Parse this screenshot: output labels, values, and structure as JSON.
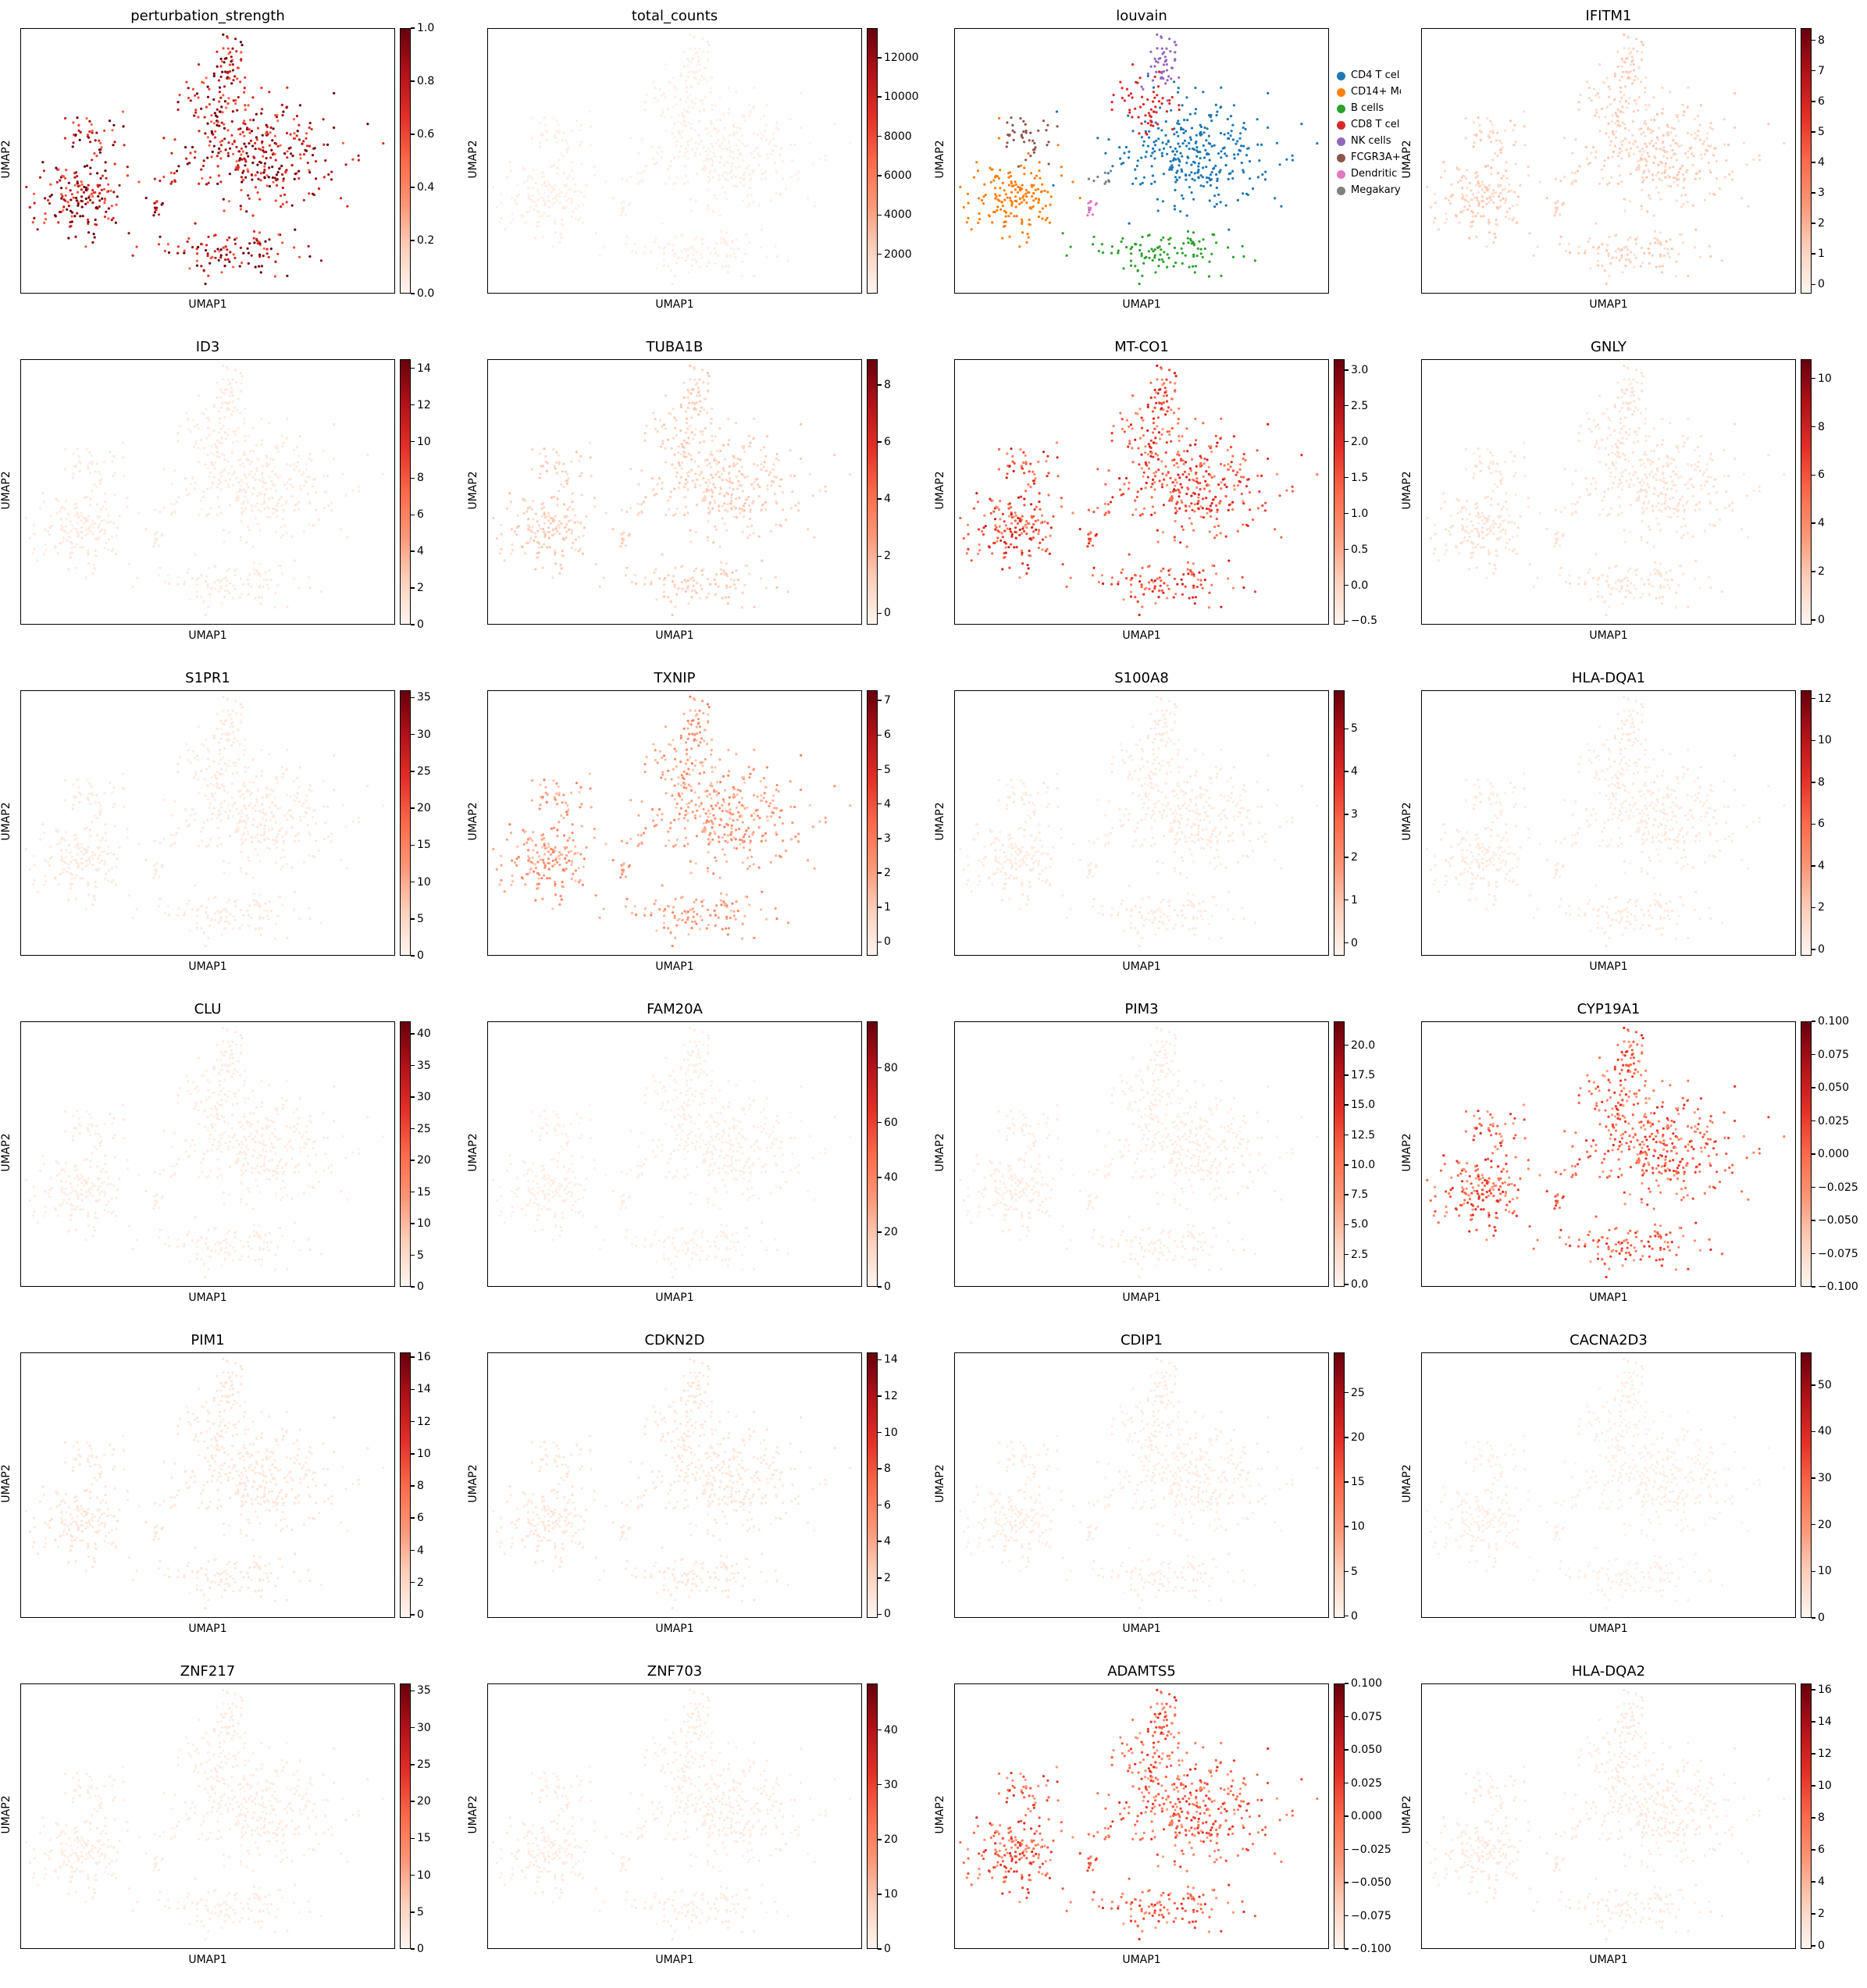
{
  "chart_data": {
    "type": "scatter",
    "xlabel": "UMAP1",
    "ylabel": "UMAP2",
    "colormap": [
      "#fff5f0",
      "#fdd0bc",
      "#fc9777",
      "#fb694a",
      "#e32f27",
      "#b11218",
      "#67000d"
    ],
    "panels": [
      {
        "title": "perturbation_strength",
        "kind": "continuous",
        "level": 0.8,
        "clim": [
          0.0,
          1.0
        ],
        "ticks": [
          {
            "v": 0.0,
            "t": "0.0"
          },
          {
            "v": 0.2,
            "t": "0.2"
          },
          {
            "v": 0.4,
            "t": "0.4"
          },
          {
            "v": 0.6,
            "t": "0.6"
          },
          {
            "v": 0.8,
            "t": "0.8"
          },
          {
            "v": 1.0,
            "t": "1.0"
          }
        ]
      },
      {
        "title": "total_counts",
        "kind": "continuous",
        "level": 0.03,
        "clim": [
          0,
          13500
        ],
        "ticks": [
          {
            "v": 2000,
            "t": "2000"
          },
          {
            "v": 4000,
            "t": "4000"
          },
          {
            "v": 6000,
            "t": "6000"
          },
          {
            "v": 8000,
            "t": "8000"
          },
          {
            "v": 10000,
            "t": "10000"
          },
          {
            "v": 12000,
            "t": "12000"
          }
        ]
      },
      {
        "title": "louvain",
        "kind": "categorical",
        "categories": [
          {
            "name": "CD4 T cel",
            "color": "#1f77b4"
          },
          {
            "name": "CD14+ Mo",
            "color": "#ff7f0e"
          },
          {
            "name": "B cells",
            "color": "#2ca02c"
          },
          {
            "name": "CD8 T cel",
            "color": "#d62728"
          },
          {
            "name": "NK cells",
            "color": "#9467bd"
          },
          {
            "name": "FCGR3A+",
            "color": "#8c564b"
          },
          {
            "name": "Dendritic",
            "color": "#e377c2"
          },
          {
            "name": "Megakary",
            "color": "#7f7f7f"
          }
        ]
      },
      {
        "title": "IFITM1",
        "kind": "continuous",
        "level": 0.15,
        "clim": [
          -0.3,
          8.4
        ],
        "ticks": [
          {
            "v": 0,
            "t": "0"
          },
          {
            "v": 1,
            "t": "1"
          },
          {
            "v": 2,
            "t": "2"
          },
          {
            "v": 3,
            "t": "3"
          },
          {
            "v": 4,
            "t": "4"
          },
          {
            "v": 5,
            "t": "5"
          },
          {
            "v": 6,
            "t": "6"
          },
          {
            "v": 7,
            "t": "7"
          },
          {
            "v": 8,
            "t": "8"
          }
        ]
      },
      {
        "title": "ID3",
        "kind": "continuous",
        "level": 0.05,
        "clim": [
          0,
          14.5
        ],
        "ticks": [
          {
            "v": 0,
            "t": "0"
          },
          {
            "v": 2,
            "t": "2"
          },
          {
            "v": 4,
            "t": "4"
          },
          {
            "v": 6,
            "t": "6"
          },
          {
            "v": 8,
            "t": "8"
          },
          {
            "v": 10,
            "t": "10"
          },
          {
            "v": 12,
            "t": "12"
          },
          {
            "v": 14,
            "t": "14"
          }
        ]
      },
      {
        "title": "TUBA1B",
        "kind": "continuous",
        "level": 0.15,
        "clim": [
          -0.4,
          8.9
        ],
        "ticks": [
          {
            "v": 0,
            "t": "0"
          },
          {
            "v": 2,
            "t": "2"
          },
          {
            "v": 4,
            "t": "4"
          },
          {
            "v": 6,
            "t": "6"
          },
          {
            "v": 8,
            "t": "8"
          }
        ]
      },
      {
        "title": "MT-CO1",
        "kind": "continuous",
        "level": 0.55,
        "clim": [
          -0.55,
          3.15
        ],
        "ticks": [
          {
            "v": -0.5,
            "t": "−0.5"
          },
          {
            "v": 0.0,
            "t": "0.0"
          },
          {
            "v": 0.5,
            "t": "0.5"
          },
          {
            "v": 1.0,
            "t": "1.0"
          },
          {
            "v": 1.5,
            "t": "1.5"
          },
          {
            "v": 2.0,
            "t": "2.0"
          },
          {
            "v": 2.5,
            "t": "2.5"
          },
          {
            "v": 3.0,
            "t": "3.0"
          }
        ]
      },
      {
        "title": "GNLY",
        "kind": "continuous",
        "level": 0.08,
        "clim": [
          -0.2,
          10.8
        ],
        "ticks": [
          {
            "v": 0,
            "t": "0"
          },
          {
            "v": 2,
            "t": "2"
          },
          {
            "v": 4,
            "t": "4"
          },
          {
            "v": 6,
            "t": "6"
          },
          {
            "v": 8,
            "t": "8"
          },
          {
            "v": 10,
            "t": "10"
          }
        ]
      },
      {
        "title": "S1PR1",
        "kind": "continuous",
        "level": 0.05,
        "clim": [
          0,
          36
        ],
        "ticks": [
          {
            "v": 0,
            "t": "0"
          },
          {
            "v": 5,
            "t": "5"
          },
          {
            "v": 10,
            "t": "10"
          },
          {
            "v": 15,
            "t": "15"
          },
          {
            "v": 20,
            "t": "20"
          },
          {
            "v": 25,
            "t": "25"
          },
          {
            "v": 30,
            "t": "30"
          },
          {
            "v": 35,
            "t": "35"
          }
        ]
      },
      {
        "title": "TXNIP",
        "kind": "continuous",
        "level": 0.3,
        "clim": [
          -0.4,
          7.3
        ],
        "ticks": [
          {
            "v": 0,
            "t": "0"
          },
          {
            "v": 1,
            "t": "1"
          },
          {
            "v": 2,
            "t": "2"
          },
          {
            "v": 3,
            "t": "3"
          },
          {
            "v": 4,
            "t": "4"
          },
          {
            "v": 5,
            "t": "5"
          },
          {
            "v": 6,
            "t": "6"
          },
          {
            "v": 7,
            "t": "7"
          }
        ]
      },
      {
        "title": "S100A8",
        "kind": "continuous",
        "level": 0.05,
        "clim": [
          -0.3,
          5.9
        ],
        "ticks": [
          {
            "v": 0,
            "t": "0"
          },
          {
            "v": 1,
            "t": "1"
          },
          {
            "v": 2,
            "t": "2"
          },
          {
            "v": 3,
            "t": "3"
          },
          {
            "v": 4,
            "t": "4"
          },
          {
            "v": 5,
            "t": "5"
          }
        ]
      },
      {
        "title": "HLA-DQA1",
        "kind": "continuous",
        "level": 0.05,
        "clim": [
          -0.3,
          12.4
        ],
        "ticks": [
          {
            "v": 0,
            "t": "0"
          },
          {
            "v": 2,
            "t": "2"
          },
          {
            "v": 4,
            "t": "4"
          },
          {
            "v": 6,
            "t": "6"
          },
          {
            "v": 8,
            "t": "8"
          },
          {
            "v": 10,
            "t": "10"
          },
          {
            "v": 12,
            "t": "12"
          }
        ]
      },
      {
        "title": "CLU",
        "kind": "continuous",
        "level": 0.04,
        "clim": [
          0,
          42
        ],
        "ticks": [
          {
            "v": 0,
            "t": "0"
          },
          {
            "v": 5,
            "t": "5"
          },
          {
            "v": 10,
            "t": "10"
          },
          {
            "v": 15,
            "t": "15"
          },
          {
            "v": 20,
            "t": "20"
          },
          {
            "v": 25,
            "t": "25"
          },
          {
            "v": 30,
            "t": "30"
          },
          {
            "v": 35,
            "t": "35"
          },
          {
            "v": 40,
            "t": "40"
          }
        ]
      },
      {
        "title": "FAM20A",
        "kind": "continuous",
        "level": 0.03,
        "clim": [
          0,
          97
        ],
        "ticks": [
          {
            "v": 0,
            "t": "0"
          },
          {
            "v": 20,
            "t": "20"
          },
          {
            "v": 40,
            "t": "40"
          },
          {
            "v": 60,
            "t": "60"
          },
          {
            "v": 80,
            "t": "80"
          }
        ]
      },
      {
        "title": "PIM3",
        "kind": "continuous",
        "level": 0.04,
        "clim": [
          -0.2,
          22
        ],
        "ticks": [
          {
            "v": 0.0,
            "t": "0.0"
          },
          {
            "v": 2.5,
            "t": "2.5"
          },
          {
            "v": 5.0,
            "t": "5.0"
          },
          {
            "v": 7.5,
            "t": "7.5"
          },
          {
            "v": 10.0,
            "t": "10.0"
          },
          {
            "v": 12.5,
            "t": "12.5"
          },
          {
            "v": 15.0,
            "t": "15.0"
          },
          {
            "v": 17.5,
            "t": "17.5"
          },
          {
            "v": 20.0,
            "t": "20.0"
          }
        ]
      },
      {
        "title": "CYP19A1",
        "kind": "continuous",
        "level": 0.5,
        "clim": [
          -0.1,
          0.1
        ],
        "ticks": [
          {
            "v": -0.1,
            "t": "−0.100"
          },
          {
            "v": -0.075,
            "t": "−0.075"
          },
          {
            "v": -0.05,
            "t": "−0.050"
          },
          {
            "v": -0.025,
            "t": "−0.025"
          },
          {
            "v": 0.0,
            "t": "0.000"
          },
          {
            "v": 0.025,
            "t": "0.025"
          },
          {
            "v": 0.05,
            "t": "0.050"
          },
          {
            "v": 0.075,
            "t": "0.075"
          },
          {
            "v": 0.1,
            "t": "0.100"
          }
        ]
      },
      {
        "title": "PIM1",
        "kind": "continuous",
        "level": 0.06,
        "clim": [
          -0.2,
          16.3
        ],
        "ticks": [
          {
            "v": 0,
            "t": "0"
          },
          {
            "v": 2,
            "t": "2"
          },
          {
            "v": 4,
            "t": "4"
          },
          {
            "v": 6,
            "t": "6"
          },
          {
            "v": 8,
            "t": "8"
          },
          {
            "v": 10,
            "t": "10"
          },
          {
            "v": 12,
            "t": "12"
          },
          {
            "v": 14,
            "t": "14"
          },
          {
            "v": 16,
            "t": "16"
          }
        ]
      },
      {
        "title": "CDKN2D",
        "kind": "continuous",
        "level": 0.06,
        "clim": [
          -0.2,
          14.4
        ],
        "ticks": [
          {
            "v": 0,
            "t": "0"
          },
          {
            "v": 2,
            "t": "2"
          },
          {
            "v": 4,
            "t": "4"
          },
          {
            "v": 6,
            "t": "6"
          },
          {
            "v": 8,
            "t": "8"
          },
          {
            "v": 10,
            "t": "10"
          },
          {
            "v": 12,
            "t": "12"
          },
          {
            "v": 14,
            "t": "14"
          }
        ]
      },
      {
        "title": "CDIP1",
        "kind": "continuous",
        "level": 0.04,
        "clim": [
          -0.2,
          29.5
        ],
        "ticks": [
          {
            "v": 0,
            "t": "0"
          },
          {
            "v": 5,
            "t": "5"
          },
          {
            "v": 10,
            "t": "10"
          },
          {
            "v": 15,
            "t": "15"
          },
          {
            "v": 20,
            "t": "20"
          },
          {
            "v": 25,
            "t": "25"
          }
        ]
      },
      {
        "title": "CACNA2D3",
        "kind": "continuous",
        "level": 0.03,
        "clim": [
          0,
          57
        ],
        "ticks": [
          {
            "v": 0,
            "t": "0"
          },
          {
            "v": 10,
            "t": "10"
          },
          {
            "v": 20,
            "t": "20"
          },
          {
            "v": 30,
            "t": "30"
          },
          {
            "v": 40,
            "t": "40"
          },
          {
            "v": 50,
            "t": "50"
          }
        ]
      },
      {
        "title": "ZNF217",
        "kind": "continuous",
        "level": 0.04,
        "clim": [
          0,
          36
        ],
        "ticks": [
          {
            "v": 0,
            "t": "0"
          },
          {
            "v": 5,
            "t": "5"
          },
          {
            "v": 10,
            "t": "10"
          },
          {
            "v": 15,
            "t": "15"
          },
          {
            "v": 20,
            "t": "20"
          },
          {
            "v": 25,
            "t": "25"
          },
          {
            "v": 30,
            "t": "30"
          },
          {
            "v": 35,
            "t": "35"
          }
        ]
      },
      {
        "title": "ZNF703",
        "kind": "continuous",
        "level": 0.04,
        "clim": [
          0,
          48.5
        ],
        "ticks": [
          {
            "v": 0,
            "t": "0"
          },
          {
            "v": 10,
            "t": "10"
          },
          {
            "v": 20,
            "t": "20"
          },
          {
            "v": 30,
            "t": "30"
          },
          {
            "v": 40,
            "t": "40"
          }
        ]
      },
      {
        "title": "ADAMTS5",
        "kind": "continuous",
        "level": 0.5,
        "clim": [
          -0.1,
          0.1
        ],
        "ticks": [
          {
            "v": -0.1,
            "t": "−0.100"
          },
          {
            "v": -0.075,
            "t": "−0.075"
          },
          {
            "v": -0.05,
            "t": "−0.050"
          },
          {
            "v": -0.025,
            "t": "−0.025"
          },
          {
            "v": 0.0,
            "t": "0.000"
          },
          {
            "v": 0.025,
            "t": "0.025"
          },
          {
            "v": 0.05,
            "t": "0.050"
          },
          {
            "v": 0.075,
            "t": "0.075"
          },
          {
            "v": 0.1,
            "t": "0.100"
          }
        ]
      },
      {
        "title": "HLA-DQA2",
        "kind": "continuous",
        "level": 0.05,
        "clim": [
          -0.2,
          16.4
        ],
        "ticks": [
          {
            "v": 0,
            "t": "0"
          },
          {
            "v": 2,
            "t": "2"
          },
          {
            "v": 4,
            "t": "4"
          },
          {
            "v": 6,
            "t": "6"
          },
          {
            "v": 8,
            "t": "8"
          },
          {
            "v": 10,
            "t": "10"
          },
          {
            "v": 12,
            "t": "12"
          },
          {
            "v": 14,
            "t": "14"
          },
          {
            "v": 16,
            "t": "16"
          }
        ]
      }
    ]
  }
}
